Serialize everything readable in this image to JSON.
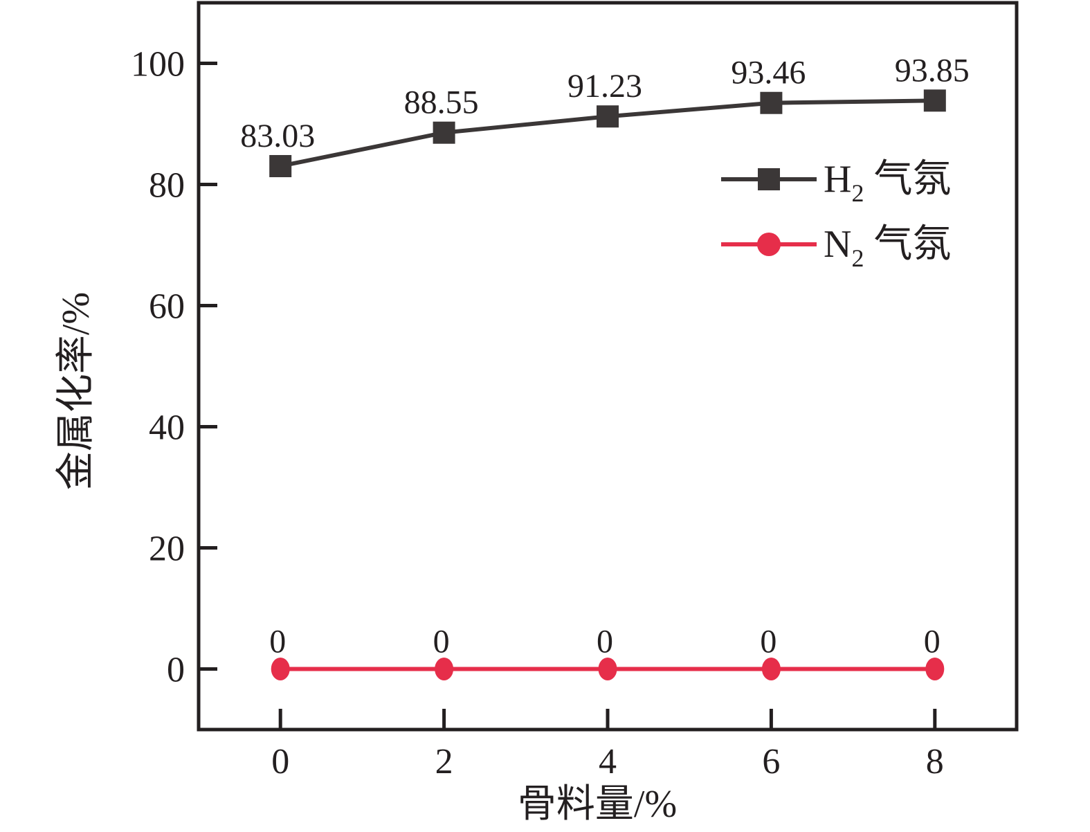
{
  "chart_data": {
    "type": "line",
    "title": "",
    "x": [
      0,
      2,
      4,
      6,
      8
    ],
    "series": [
      {
        "name": "H2 气氛",
        "values": [
          83.03,
          88.55,
          91.23,
          93.46,
          93.85
        ],
        "point_labels": [
          "83.03",
          "88.55",
          "91.23",
          "93.46",
          "93.85"
        ],
        "color": "#3b3737",
        "marker": "square"
      },
      {
        "name": "N2 气氛",
        "values": [
          0,
          0,
          0,
          0,
          0
        ],
        "point_labels": [
          "0",
          "0",
          "0",
          "0",
          "0"
        ],
        "color": "#e62e4a",
        "marker": "circle"
      }
    ],
    "xlabel": "骨料量/%",
    "ylabel": "金属化率/%",
    "xlim": [
      -1,
      9
    ],
    "ylim": [
      -10,
      110
    ],
    "xticks": [
      "0",
      "2",
      "4",
      "6",
      "8"
    ],
    "xtick_values": [
      0,
      2,
      4,
      6,
      8
    ],
    "yticks": [
      "0",
      "20",
      "40",
      "60",
      "80",
      "100"
    ],
    "ytick_values": [
      0,
      20,
      40,
      60,
      80,
      100
    ],
    "grid": false,
    "legend_position": "inside upper right"
  },
  "legend": {
    "items": [
      {
        "prefix": "H",
        "sub": "2",
        "suffix": " 气氛",
        "color": "#3b3737",
        "marker": "square"
      },
      {
        "prefix": "N",
        "sub": "2",
        "suffix": " 气氛",
        "color": "#e62e4a",
        "marker": "circle"
      }
    ]
  },
  "colors": {
    "h2_series": "#3b3737",
    "n2_series": "#e62e4a",
    "axis": "#231f20",
    "background": "#ffffff"
  }
}
